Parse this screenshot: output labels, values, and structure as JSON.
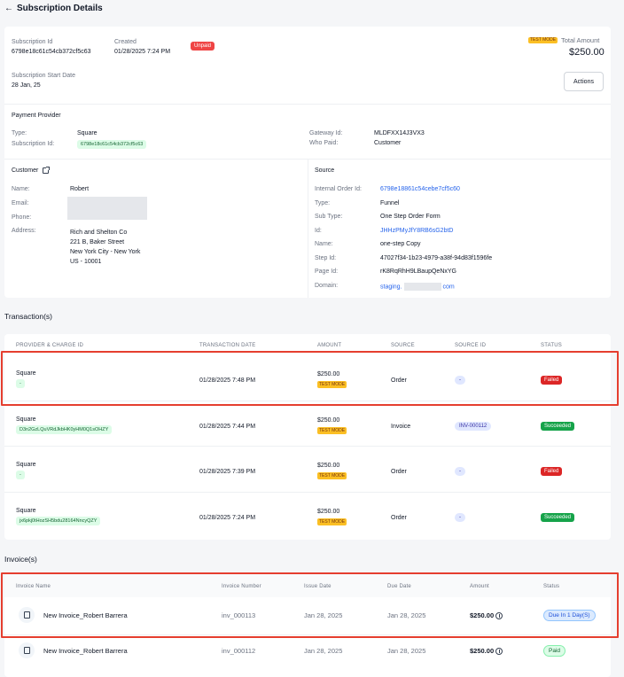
{
  "page": {
    "title": "Subscription Details",
    "back_icon": "←"
  },
  "summary": {
    "sub_id_label": "Subscription Id",
    "sub_id": "6798e18c61c54cb372cf5c63",
    "created_label": "Created",
    "created": "01/28/2025 7:24 PM",
    "status": "Unpaid",
    "test_mode": "TEST MODE",
    "total_label": "Total Amount",
    "total": "$250.00",
    "start_label": "Subscription Start Date",
    "start": "28 Jan, 25",
    "actions_label": "Actions"
  },
  "payment": {
    "heading": "Payment Provider",
    "type_label": "Type:",
    "type": "Square",
    "subid_label": "Subscription Id:",
    "subid": "6798e18c61c54cb372cf5c63",
    "gateway_label": "Gateway Id:",
    "gateway": "MLDFXX14J3VX3",
    "who_label": "Who Paid:",
    "who": "Customer"
  },
  "customer": {
    "heading": "Customer",
    "name_label": "Name:",
    "name": "Robert",
    "email_label": "Email:",
    "phone_label": "Phone:",
    "address_label": "Address:",
    "address": [
      "Rich and Shelton Co",
      "221 B, Baker Street",
      "New York City - New York",
      "US - 10001"
    ]
  },
  "source": {
    "heading": "Source",
    "rows": [
      {
        "label": "Internal Order Id:",
        "value": "6798e18861c54cebe7cf5c60",
        "link": true
      },
      {
        "label": "Type:",
        "value": "Funnel",
        "link": false
      },
      {
        "label": "Sub Type:",
        "value": "One Step Order Form",
        "link": false
      },
      {
        "label": "Id:",
        "value": "JHHzPMyJfY8RB6sG2btD",
        "link": true
      },
      {
        "label": "Name:",
        "value": "one-step Copy",
        "link": false
      },
      {
        "label": "Step Id:",
        "value": "47027f34-1b23-4979-a38f-94d83f1596fe",
        "link": false
      },
      {
        "label": "Page Id:",
        "value": "rK8RqRhH9LBaupQeNxYG",
        "link": false
      },
      {
        "label": "Domain:",
        "value": "staging.",
        "value2": "com",
        "link": true
      }
    ]
  },
  "transactions": {
    "heading": "Transaction(s)",
    "headers": [
      "PROVIDER & CHARGE ID",
      "TRANSACTION DATE",
      "AMOUNT",
      "SOURCE",
      "SOURCE ID",
      "STATUS"
    ],
    "rows": [
      {
        "provider": "Square",
        "charge": "-",
        "date": "01/28/2025 7:48 PM",
        "amount": "$250.00",
        "mode": "TEST MODE",
        "source": "Order",
        "source_id": "-",
        "status": "Failed"
      },
      {
        "provider": "Square",
        "charge": "D3n2GzLQuVRdJkbHK0yHM0Q1sOHZY",
        "date": "01/28/2025 7:44 PM",
        "amount": "$250.00",
        "mode": "TEST MODE",
        "source": "Invoice",
        "source_id": "INV-000112",
        "status": "Succeeded"
      },
      {
        "provider": "Square",
        "charge": "-",
        "date": "01/28/2025 7:39 PM",
        "amount": "$250.00",
        "mode": "TEST MODE",
        "source": "Order",
        "source_id": "-",
        "status": "Failed"
      },
      {
        "provider": "Square",
        "charge": "jx6pkj0tHozSH5bdu28164NncyQZY",
        "date": "01/28/2025 7:24 PM",
        "amount": "$250.00",
        "mode": "TEST MODE",
        "source": "Order",
        "source_id": "-",
        "status": "Succeeded"
      }
    ]
  },
  "invoices": {
    "heading": "Invoice(s)",
    "headers": [
      "Invoice Name",
      "Invoice Number",
      "Issue Date",
      "Due Date",
      "Amount",
      "Status"
    ],
    "rows": [
      {
        "name": "New Invoice_Robert Barrera",
        "number": "inv_000113",
        "issue": "Jan 28, 2025",
        "due": "Jan 28, 2025",
        "amount": "$250.00",
        "status": "Due In 1 Day(S)"
      },
      {
        "name": "New Invoice_Robert Barrera",
        "number": "inv_000112",
        "issue": "Jan 28, 2025",
        "due": "Jan 28, 2025",
        "amount": "$250.00",
        "status": "Paid"
      }
    ]
  }
}
